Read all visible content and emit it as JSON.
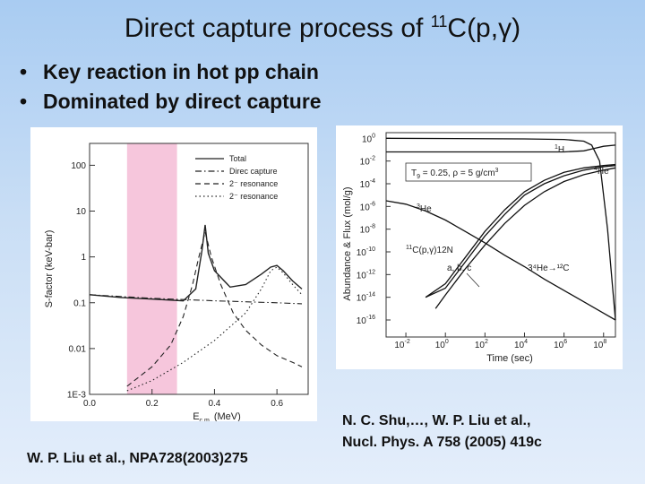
{
  "title": {
    "main": "Direct capture process of ",
    "sup": "11",
    "reaction": "C(p,γ)"
  },
  "bullets": [
    "Key reaction in hot pp chain",
    "Dominated by direct capture"
  ],
  "citations": {
    "left": "W. P. Liu et al., NPA728(2003)275",
    "right_line1": "N. C. Shu,…, W. P. Liu et al.,",
    "right_line2": "Nucl. Phys. A 758 (2005) 419c"
  },
  "chart_data": [
    {
      "type": "line",
      "ylabel": "S-factor (keV-bar)",
      "xlabel_main": "E",
      "xlabel_sub": "c.m.",
      "xlabel_unit": "(MeV)",
      "x_ticks": [
        "0.0",
        "0.2",
        "0.4",
        "0.6"
      ],
      "y_ticks": [
        "100",
        "10",
        "1",
        "0.1",
        "0.01",
        "1E-3"
      ],
      "xlim": [
        0,
        0.7
      ],
      "ylim_log": [
        0.001,
        300
      ],
      "legend": [
        "Total",
        "Direc capture",
        "2⁻ resonance",
        "2⁻ resonance"
      ],
      "shaded_band": [
        0.12,
        0.28
      ],
      "series": [
        {
          "name": "Total",
          "style": "solid",
          "x": [
            0.0,
            0.1,
            0.2,
            0.3,
            0.34,
            0.36,
            0.37,
            0.38,
            0.4,
            0.45,
            0.5,
            0.55,
            0.58,
            0.6,
            0.62,
            0.65,
            0.68
          ],
          "y": [
            0.15,
            0.13,
            0.12,
            0.11,
            0.2,
            1.4,
            5.0,
            1.2,
            0.5,
            0.22,
            0.25,
            0.42,
            0.6,
            0.65,
            0.5,
            0.3,
            0.2
          ]
        },
        {
          "name": "Direc capture",
          "style": "dashdot",
          "x": [
            0.0,
            0.2,
            0.4,
            0.6,
            0.68
          ],
          "y": [
            0.15,
            0.125,
            0.11,
            0.1,
            0.095
          ]
        },
        {
          "name": "2⁻ resonance",
          "style": "dashed",
          "x": [
            0.12,
            0.2,
            0.26,
            0.3,
            0.33,
            0.35,
            0.37,
            0.39,
            0.42,
            0.46,
            0.5,
            0.55,
            0.6,
            0.65,
            0.68
          ],
          "y": [
            0.0015,
            0.004,
            0.012,
            0.05,
            0.25,
            1.0,
            3.5,
            1.0,
            0.25,
            0.06,
            0.025,
            0.012,
            0.007,
            0.005,
            0.004
          ]
        },
        {
          "name": "2⁻ resonance",
          "style": "dotted",
          "x": [
            0.12,
            0.2,
            0.3,
            0.4,
            0.5,
            0.55,
            0.58,
            0.6,
            0.62,
            0.65,
            0.68
          ],
          "y": [
            0.0012,
            0.002,
            0.005,
            0.015,
            0.06,
            0.2,
            0.5,
            0.6,
            0.45,
            0.25,
            0.15
          ]
        }
      ]
    },
    {
      "type": "line",
      "ylabel": "Abundance & Flux (mol/g)",
      "xlabel": "Time (sec)",
      "x_ticks": [
        "-2",
        "0",
        "2",
        "4",
        "6",
        "8"
      ],
      "y_ticks": [
        "0",
        "-2",
        "-4",
        "-6",
        "-8",
        "-10",
        "-12",
        "-14",
        "-16"
      ],
      "tick_base": "10",
      "xlim_log10": [
        -3,
        8.6
      ],
      "ylim_log10": [
        -17.5,
        0.5
      ],
      "annotations": {
        "conditions_T": "T",
        "conditions_T_sub": "9",
        "conditions_T_val": " = 0.25,  ρ = 5 g/cm",
        "conditions_sup": "3",
        "label_1H": "1H",
        "label_4He": "4He",
        "label_3He": "3He",
        "label_11C": "11C(p,γ)12N",
        "label_abc": "a, b, c",
        "label_3alpha": "3⁴He→¹²C"
      },
      "series": [
        {
          "name": "1H",
          "x": [
            -3,
            4,
            6,
            7,
            7.4,
            7.8,
            8.2,
            8.6
          ],
          "y": [
            0,
            -0.05,
            -0.1,
            -0.25,
            -0.6,
            -2,
            -8,
            -16
          ]
        },
        {
          "name": "4He",
          "x": [
            -3,
            6,
            7,
            7.5,
            8,
            8.6
          ],
          "y": [
            -1.2,
            -1.2,
            -1.1,
            -0.9,
            -0.7,
            -0.6
          ]
        },
        {
          "name": "3He",
          "x": [
            -3,
            -2,
            -1,
            0,
            1,
            2,
            3,
            4,
            5,
            6,
            7,
            8,
            8.6
          ],
          "y": [
            -5.5,
            -5.8,
            -6.4,
            -7.2,
            -8.2,
            -9.2,
            -10.3,
            -11.3,
            -12.4,
            -13.4,
            -14.4,
            -15.4,
            -16
          ]
        },
        {
          "name": "a",
          "x": [
            -1,
            0,
            1,
            2,
            3,
            4,
            5,
            6,
            7,
            8,
            8.6
          ],
          "y": [
            -14,
            -12.8,
            -10.5,
            -8.2,
            -6.3,
            -4.7,
            -3.7,
            -3.0,
            -2.6,
            -2.4,
            -2.3
          ]
        },
        {
          "name": "b",
          "x": [
            -1,
            0,
            1,
            2,
            3,
            4,
            5,
            6,
            7,
            8,
            8.6
          ],
          "y": [
            -14,
            -13.2,
            -10.9,
            -8.6,
            -6.7,
            -5.0,
            -4.0,
            -3.3,
            -2.8,
            -2.5,
            -2.4
          ]
        },
        {
          "name": "c",
          "x": [
            -0.5,
            0,
            1,
            2,
            3,
            4,
            5,
            6,
            7,
            8,
            8.6
          ],
          "y": [
            -15,
            -13.8,
            -11.5,
            -9.4,
            -7.5,
            -5.9,
            -4.7,
            -3.8,
            -3.2,
            -2.8,
            -2.6
          ]
        }
      ]
    }
  ]
}
